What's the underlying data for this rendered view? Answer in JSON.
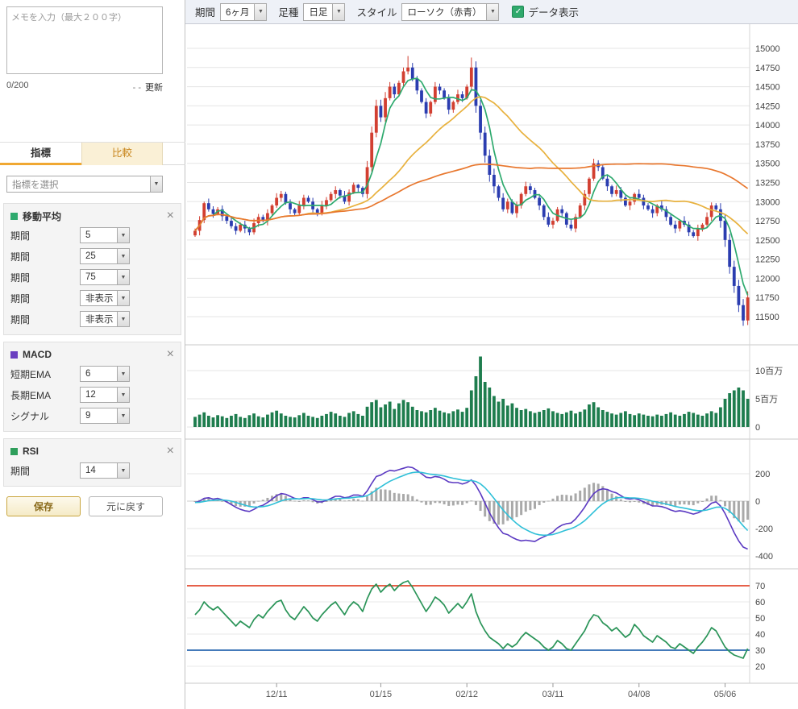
{
  "icons": {
    "dropdown": "▼",
    "close": "×",
    "check": "✓"
  },
  "toolbar": {
    "period_label": "期間",
    "period_value": "6ヶ月",
    "bar_type_label": "足種",
    "bar_type_value": "日足",
    "style_label": "スタイル",
    "style_value": "ローソク（赤青）",
    "data_display_label": "データ表示",
    "data_display_checked": true
  },
  "sidebar": {
    "memo": {
      "placeholder": "メモを入力（最大２００字）",
      "counter": "0/200",
      "update_prefix": "- -",
      "update_label": "更新"
    },
    "tabs": [
      {
        "label": "指標",
        "active": true
      },
      {
        "label": "比較",
        "active": false
      }
    ],
    "indicator_select_placeholder": "指標を選択",
    "panels": [
      {
        "title": "移動平均",
        "color": "#2eaa6e",
        "rows": [
          {
            "label": "期間",
            "value": "5"
          },
          {
            "label": "期間",
            "value": "25"
          },
          {
            "label": "期間",
            "value": "75"
          },
          {
            "label": "期間",
            "value": "非表示"
          },
          {
            "label": "期間",
            "value": "非表示"
          }
        ]
      },
      {
        "title": "MACD",
        "color": "#6a3fc0",
        "rows": [
          {
            "label": "短期EMA",
            "value": "6"
          },
          {
            "label": "長期EMA",
            "value": "12"
          },
          {
            "label": "シグナル",
            "value": "9"
          }
        ]
      },
      {
        "title": "RSI",
        "color": "#2e9e5b",
        "rows": [
          {
            "label": "期間",
            "value": "14"
          }
        ]
      }
    ],
    "save_label": "保存",
    "reset_label": "元に戻す"
  },
  "chart_data": {
    "type": "candlestick",
    "x_ticks": [
      {
        "index": 18,
        "label": "12/11"
      },
      {
        "index": 41,
        "label": "01/15"
      },
      {
        "index": 60,
        "label": "02/12"
      },
      {
        "index": 79,
        "label": "03/11"
      },
      {
        "index": 98,
        "label": "04/08"
      },
      {
        "index": 117,
        "label": "05/06"
      }
    ],
    "price": {
      "y_ticks": [
        15000,
        14750,
        14500,
        14250,
        14000,
        13750,
        13500,
        13250,
        13000,
        12750,
        12500,
        12250,
        12000,
        11750,
        11500
      ],
      "ylim": [
        11350,
        15000
      ],
      "up_color": "#d23f31",
      "down_color": "#2b3db0",
      "moving_averages": [
        {
          "period": 5,
          "color": "#2eaa6e"
        },
        {
          "period": 25,
          "color": "#e8b13d"
        },
        {
          "period": 75,
          "color": "#e8772e"
        }
      ],
      "candles": [
        [
          12560,
          12650,
          12540,
          12620
        ],
        [
          12620,
          12810,
          12560,
          12760
        ],
        [
          12760,
          13000,
          12720,
          12980
        ],
        [
          12980,
          13040,
          12870,
          12900
        ],
        [
          12900,
          12940,
          12790,
          12840
        ],
        [
          12840,
          12930,
          12820,
          12900
        ],
        [
          12900,
          12950,
          12750,
          12810
        ],
        [
          12810,
          12830,
          12710,
          12750
        ],
        [
          12750,
          12810,
          12650,
          12680
        ],
        [
          12680,
          12720,
          12570,
          12620
        ],
        [
          12620,
          12730,
          12600,
          12700
        ],
        [
          12700,
          12750,
          12590,
          12650
        ],
        [
          12650,
          12670,
          12560,
          12600
        ],
        [
          12600,
          12780,
          12570,
          12720
        ],
        [
          12720,
          12840,
          12670,
          12800
        ],
        [
          12800,
          12830,
          12730,
          12750
        ],
        [
          12750,
          12900,
          12690,
          12850
        ],
        [
          12850,
          12970,
          12810,
          12950
        ],
        [
          12950,
          13110,
          12920,
          13050
        ],
        [
          13050,
          13140,
          13000,
          13100
        ],
        [
          13100,
          13130,
          12960,
          12980
        ],
        [
          12980,
          13030,
          12840,
          12900
        ],
        [
          12900,
          12920,
          12810,
          12850
        ],
        [
          12850,
          13010,
          12820,
          12950
        ],
        [
          12950,
          13090,
          12900,
          13050
        ],
        [
          13050,
          13080,
          12980,
          13000
        ],
        [
          13000,
          13050,
          12840,
          12900
        ],
        [
          12900,
          12920,
          12810,
          12850
        ],
        [
          12850,
          13010,
          12820,
          12950
        ],
        [
          12950,
          13060,
          12900,
          13020
        ],
        [
          13020,
          13130,
          13000,
          13100
        ],
        [
          13100,
          13200,
          13040,
          13150
        ],
        [
          13150,
          13170,
          13040,
          13080
        ],
        [
          13080,
          13140,
          12970,
          13000
        ],
        [
          13000,
          13160,
          12950,
          13120
        ],
        [
          13120,
          13250,
          13100,
          13220
        ],
        [
          13220,
          13230,
          13120,
          13180
        ],
        [
          13180,
          13200,
          13060,
          13100
        ],
        [
          13100,
          13530,
          13040,
          13450
        ],
        [
          13450,
          13980,
          13390,
          13900
        ],
        [
          13900,
          14330,
          13840,
          14250
        ],
        [
          14250,
          14330,
          14040,
          14100
        ],
        [
          14100,
          14430,
          14040,
          14350
        ],
        [
          14350,
          14560,
          14320,
          14500
        ],
        [
          14500,
          14540,
          14350,
          14400
        ],
        [
          14400,
          14580,
          14380,
          14550
        ],
        [
          14550,
          14750,
          14490,
          14700
        ],
        [
          14700,
          14900,
          14660,
          14750
        ],
        [
          14750,
          14810,
          14570,
          14600
        ],
        [
          14600,
          14640,
          14400,
          14450
        ],
        [
          14450,
          14480,
          14280,
          14300
        ],
        [
          14300,
          14350,
          14090,
          14150
        ],
        [
          14150,
          14320,
          14110,
          14300
        ],
        [
          14300,
          14560,
          14270,
          14500
        ],
        [
          14500,
          14540,
          14400,
          14450
        ],
        [
          14450,
          14480,
          14330,
          14350
        ],
        [
          14350,
          14400,
          14140,
          14200
        ],
        [
          14200,
          14320,
          14160,
          14300
        ],
        [
          14300,
          14460,
          14270,
          14400
        ],
        [
          14400,
          14440,
          14300,
          14350
        ],
        [
          14350,
          14530,
          14330,
          14500
        ],
        [
          14500,
          14880,
          14440,
          14750
        ],
        [
          14750,
          14830,
          14160,
          14250
        ],
        [
          14250,
          14330,
          13810,
          13900
        ],
        [
          13900,
          13980,
          13510,
          13600
        ],
        [
          13600,
          13680,
          13260,
          13350
        ],
        [
          13350,
          13430,
          13110,
          13200
        ],
        [
          13200,
          13220,
          13010,
          13050
        ],
        [
          13050,
          13110,
          12870,
          12900
        ],
        [
          12900,
          13040,
          12850,
          13000
        ],
        [
          13000,
          13030,
          12830,
          12850
        ],
        [
          12850,
          13000,
          12790,
          12950
        ],
        [
          12950,
          13120,
          12910,
          13100
        ],
        [
          13100,
          13260,
          13070,
          13200
        ],
        [
          13200,
          13240,
          13100,
          13150
        ],
        [
          13150,
          13180,
          13030,
          13050
        ],
        [
          13050,
          13100,
          12890,
          12950
        ],
        [
          12950,
          12970,
          12760,
          12800
        ],
        [
          12800,
          12860,
          12670,
          12700
        ],
        [
          12700,
          12790,
          12650,
          12750
        ],
        [
          12750,
          12930,
          12730,
          12900
        ],
        [
          12900,
          12950,
          12790,
          12850
        ],
        [
          12850,
          12870,
          12660,
          12700
        ],
        [
          12700,
          12760,
          12620,
          12650
        ],
        [
          12650,
          12840,
          12600,
          12800
        ],
        [
          12800,
          12980,
          12780,
          12950
        ],
        [
          12950,
          13150,
          12890,
          13100
        ],
        [
          13100,
          13320,
          13060,
          13300
        ],
        [
          13300,
          13560,
          13270,
          13500
        ],
        [
          13500,
          13540,
          13400,
          13450
        ],
        [
          13450,
          13480,
          13280,
          13300
        ],
        [
          13300,
          13350,
          13140,
          13200
        ],
        [
          13200,
          13220,
          13060,
          13100
        ],
        [
          13100,
          13210,
          13070,
          13150
        ],
        [
          13150,
          13190,
          13000,
          13050
        ],
        [
          13050,
          13080,
          12930,
          12950
        ],
        [
          12950,
          13050,
          12890,
          13000
        ],
        [
          13000,
          13120,
          12960,
          13100
        ],
        [
          13100,
          13160,
          13020,
          13050
        ],
        [
          13050,
          13090,
          12900,
          12950
        ],
        [
          12950,
          12980,
          12880,
          12900
        ],
        [
          12900,
          12950,
          12790,
          12850
        ],
        [
          12850,
          12970,
          12810,
          12950
        ],
        [
          12950,
          13010,
          12870,
          12900
        ],
        [
          12900,
          12940,
          12750,
          12800
        ],
        [
          12800,
          12830,
          12680,
          12700
        ],
        [
          12700,
          12750,
          12590,
          12650
        ],
        [
          12650,
          12770,
          12610,
          12750
        ],
        [
          12750,
          12810,
          12670,
          12700
        ],
        [
          12700,
          12740,
          12550,
          12600
        ],
        [
          12600,
          12630,
          12530,
          12550
        ],
        [
          12550,
          12700,
          12490,
          12650
        ],
        [
          12650,
          12720,
          12610,
          12700
        ],
        [
          12700,
          12860,
          12670,
          12800
        ],
        [
          12800,
          12990,
          12750,
          12950
        ],
        [
          12950,
          12980,
          12880,
          12900
        ],
        [
          12900,
          12980,
          12660,
          12750
        ],
        [
          12750,
          12830,
          12410,
          12500
        ],
        [
          12500,
          12580,
          12060,
          12150
        ],
        [
          12150,
          12230,
          11810,
          11900
        ],
        [
          11900,
          11980,
          11560,
          11650
        ],
        [
          11650,
          11730,
          11380,
          11450
        ],
        [
          11450,
          11830,
          11390,
          11750
        ]
      ]
    },
    "volume": {
      "unit": "百万",
      "y_ticks": [
        {
          "value": 10,
          "label": "10百万"
        },
        {
          "value": 5,
          "label": "5百万"
        },
        {
          "value": 0,
          "label": "0"
        }
      ],
      "color": "#1e7d4e",
      "values": [
        1.8,
        2.2,
        2.6,
        2.0,
        1.7,
        2.1,
        1.9,
        1.6,
        2.0,
        2.3,
        1.8,
        1.6,
        2.1,
        2.4,
        1.9,
        1.7,
        2.2,
        2.6,
        2.9,
        2.4,
        2.0,
        1.8,
        1.7,
        2.1,
        2.5,
        2.0,
        1.8,
        1.6,
        2.0,
        2.3,
        2.7,
        2.4,
        2.0,
        1.8,
        2.5,
        2.8,
        2.3,
        2.0,
        3.6,
        4.4,
        4.8,
        3.5,
        4.0,
        4.5,
        3.2,
        4.2,
        4.8,
        4.4,
        3.6,
        3.0,
        2.8,
        2.6,
        3.0,
        3.4,
        2.9,
        2.6,
        2.4,
        2.8,
        3.1,
        2.7,
        3.4,
        6.5,
        9.0,
        12.5,
        8.0,
        7.0,
        5.5,
        4.5,
        5.0,
        3.8,
        4.2,
        3.4,
        3.0,
        3.2,
        2.8,
        2.5,
        2.7,
        3.0,
        3.3,
        2.8,
        2.5,
        2.3,
        2.6,
        2.9,
        2.4,
        2.7,
        3.1,
        4.0,
        4.4,
        3.5,
        3.0,
        2.7,
        2.4,
        2.2,
        2.5,
        2.8,
        2.3,
        2.1,
        2.4,
        2.2,
        2.0,
        1.9,
        2.2,
        2.0,
        2.3,
        2.6,
        2.2,
        2.0,
        2.3,
        2.7,
        2.5,
        2.2,
        2.0,
        2.4,
        2.8,
        2.5,
        3.5,
        5.0,
        6.0,
        6.5,
        7.0,
        6.5,
        5.0
      ]
    },
    "macd": {
      "y_ticks": [
        200,
        0,
        -200,
        -400
      ],
      "line_color": "#5b39c2",
      "signal_color": "#2fc0d8",
      "histogram_color": "#a9a9a9",
      "signal_period": 9,
      "values": [
        -10,
        0,
        20,
        25,
        15,
        20,
        10,
        -5,
        -25,
        -45,
        -60,
        -70,
        -75,
        -60,
        -40,
        -30,
        -10,
        15,
        40,
        55,
        50,
        35,
        20,
        15,
        25,
        25,
        10,
        -5,
        -5,
        5,
        20,
        35,
        35,
        25,
        30,
        45,
        45,
        35,
        75,
        130,
        180,
        190,
        210,
        225,
        220,
        230,
        240,
        250,
        245,
        225,
        200,
        175,
        170,
        180,
        175,
        160,
        140,
        135,
        135,
        125,
        135,
        155,
        115,
        55,
        -15,
        -85,
        -145,
        -195,
        -235,
        -245,
        -265,
        -280,
        -290,
        -285,
        -290,
        -295,
        -275,
        -260,
        -245,
        -225,
        -195,
        -175,
        -165,
        -160,
        -130,
        -90,
        -45,
        10,
        55,
        80,
        90,
        85,
        70,
        60,
        40,
        20,
        15,
        20,
        10,
        -5,
        -20,
        -35,
        -35,
        -40,
        -50,
        -65,
        -75,
        -70,
        -75,
        -85,
        -95,
        -85,
        -70,
        -45,
        -15,
        -5,
        -35,
        -90,
        -160,
        -230,
        -290,
        -335,
        -350
      ]
    },
    "rsi": {
      "period": 14,
      "y_ticks": [
        70,
        60,
        50,
        40,
        30,
        20
      ],
      "color": "#2a9458",
      "thresholds": [
        {
          "value": 70,
          "color": "#e2492f"
        },
        {
          "value": 30,
          "color": "#2a67b1"
        }
      ],
      "values": [
        52,
        55,
        60,
        57,
        55,
        57,
        54,
        51,
        48,
        45,
        48,
        46,
        44,
        49,
        52,
        50,
        54,
        57,
        60,
        61,
        55,
        51,
        49,
        53,
        57,
        54,
        50,
        48,
        52,
        55,
        58,
        60,
        56,
        52,
        57,
        60,
        58,
        54,
        62,
        68,
        71,
        66,
        69,
        71,
        67,
        70,
        72,
        73,
        69,
        64,
        59,
        54,
        58,
        63,
        61,
        58,
        53,
        56,
        59,
        56,
        60,
        65,
        54,
        47,
        42,
        38,
        36,
        34,
        31,
        34,
        32,
        34,
        38,
        41,
        39,
        37,
        35,
        32,
        30,
        32,
        36,
        34,
        31,
        30,
        34,
        38,
        42,
        48,
        52,
        51,
        47,
        45,
        42,
        44,
        41,
        38,
        40,
        46,
        43,
        39,
        37,
        35,
        39,
        37,
        35,
        32,
        31,
        34,
        32,
        30,
        28,
        32,
        35,
        39,
        44,
        42,
        37,
        32,
        29,
        27,
        26,
        25,
        31
      ]
    }
  }
}
